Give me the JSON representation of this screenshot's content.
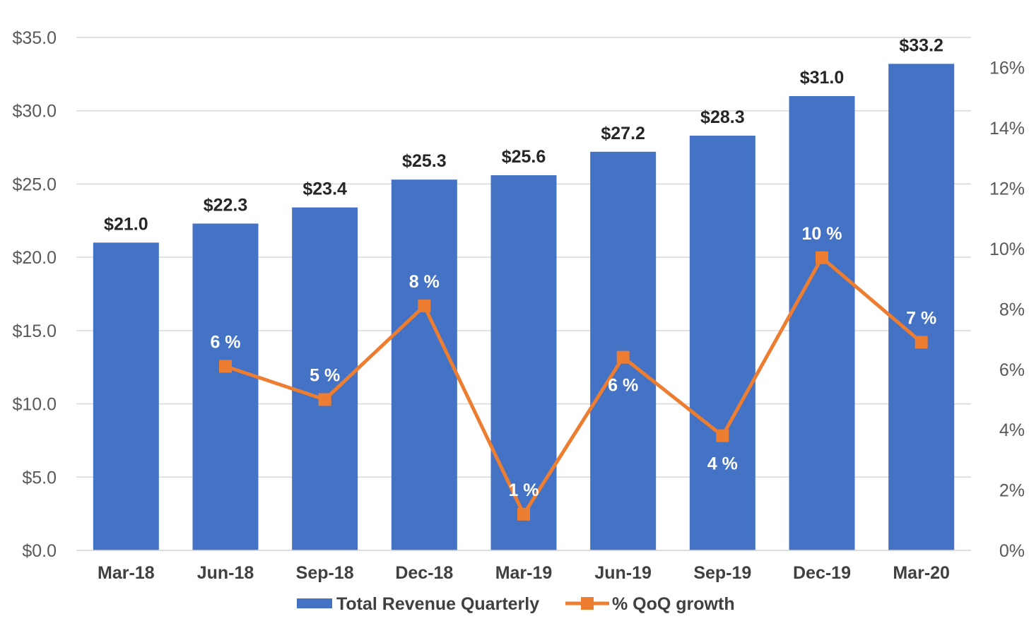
{
  "chart_data": {
    "type": "bar",
    "categories": [
      "Mar-18",
      "Jun-18",
      "Sep-18",
      "Dec-18",
      "Mar-19",
      "Jun-19",
      "Sep-19",
      "Dec-19",
      "Mar-20"
    ],
    "series": [
      {
        "name": "Total Revenue Quarterly",
        "type": "bar",
        "axis": "left",
        "color": "#4472c4",
        "values": [
          21.0,
          22.3,
          23.4,
          25.3,
          25.6,
          27.2,
          28.3,
          31.0,
          33.2
        ],
        "labels": [
          "$21.0",
          "$22.3",
          "$23.4",
          "$25.3",
          "$25.6",
          "$27.2",
          "$28.3",
          "$31.0",
          "$33.2"
        ]
      },
      {
        "name": "% QoQ growth",
        "type": "line",
        "axis": "right",
        "color": "#ed7d31",
        "marker": "square",
        "values": [
          null,
          6.1,
          5.0,
          8.1,
          1.2,
          6.4,
          3.8,
          9.7,
          6.9
        ],
        "labels": [
          null,
          "6 %",
          "5 %",
          "8 %",
          "1 %",
          "6 %",
          "4 %",
          "10 %",
          "7 %"
        ],
        "label_positions": [
          null,
          "above",
          "above",
          "above",
          "above",
          "below",
          "below",
          "above",
          "above"
        ]
      }
    ],
    "y_axis": {
      "ylim": [
        0,
        35
      ],
      "ticks": [
        0,
        5,
        10,
        15,
        20,
        25,
        30,
        35
      ],
      "tick_labels": [
        "$0.0",
        "$5.0",
        "$10.0",
        "$15.0",
        "$20.0",
        "$25.0",
        "$30.0",
        "$35.0"
      ]
    },
    "y2_axis": {
      "ylim": [
        0,
        17
      ],
      "ticks": [
        0,
        2,
        4,
        6,
        8,
        10,
        12,
        14,
        16
      ],
      "tick_labels": [
        "0%",
        "2%",
        "4%",
        "6%",
        "8%",
        "10%",
        "12%",
        "14%",
        "16%"
      ]
    },
    "grid": true,
    "legend": {
      "position": "bottom",
      "entries": [
        "Total Revenue Quarterly",
        "% QoQ growth"
      ]
    }
  }
}
